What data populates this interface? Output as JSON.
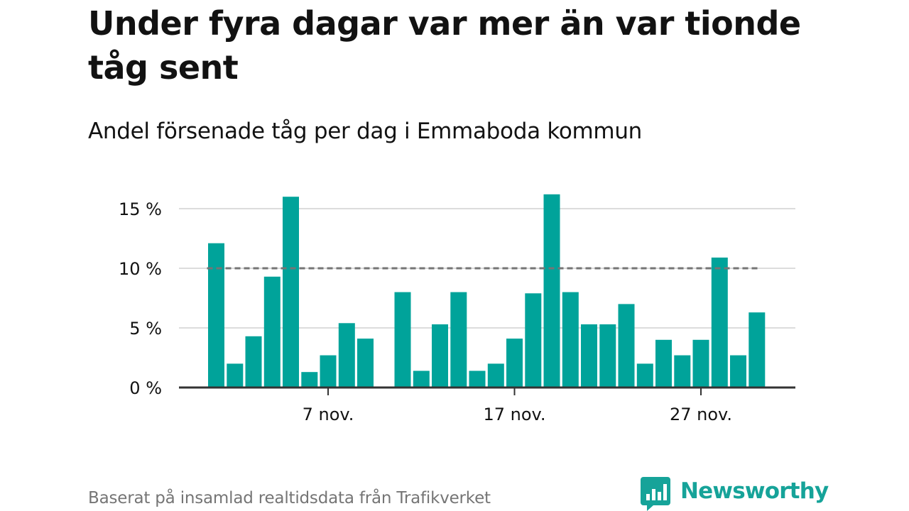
{
  "title": "Under fyra dagar var mer än var tionde tåg sent",
  "subtitle": "Andel försenade tåg per dag i Emmaboda kommun",
  "source": "Baserat på insamlad realtidsdata från Trafikverket",
  "brand": {
    "name": "Newsworthy",
    "logo_icon": "bar-chart-speech-bubble-icon"
  },
  "colors": {
    "bar": "#00a39a",
    "threshold": "#757575",
    "grid": "#dcdcdc",
    "axis": "#333333",
    "brand": "#16a399",
    "text": "#121212",
    "muted": "#757575"
  },
  "chart_data": {
    "type": "bar",
    "title": "Under fyra dagar var mer än var tionde tåg sent",
    "subtitle": "Andel försenade tåg per dag i Emmaboda kommun",
    "x_unit": "day of November",
    "x": [
      1,
      2,
      3,
      4,
      5,
      6,
      7,
      8,
      9,
      10,
      11,
      12,
      13,
      14,
      15,
      16,
      17,
      18,
      19,
      20,
      21,
      22,
      23,
      24,
      25,
      26,
      27,
      28,
      29,
      30
    ],
    "values": [
      12.1,
      2.0,
      4.3,
      9.3,
      16.0,
      1.3,
      2.7,
      5.4,
      4.1,
      null,
      8.0,
      1.4,
      5.3,
      8.0,
      1.4,
      2.0,
      4.1,
      7.9,
      16.2,
      8.0,
      5.3,
      5.3,
      7.0,
      2.0,
      4.0,
      2.7,
      4.0,
      10.9,
      2.7,
      6.3
    ],
    "x_ticks": [
      {
        "x": 7,
        "label": "7 nov."
      },
      {
        "x": 17,
        "label": "17 nov."
      },
      {
        "x": 27,
        "label": "27 nov."
      }
    ],
    "y_ticks": [
      {
        "value": 0,
        "label": "0 %"
      },
      {
        "value": 5,
        "label": "5 %"
      },
      {
        "value": 10,
        "label": "10 %"
      },
      {
        "value": 15,
        "label": "15 %"
      }
    ],
    "ylim": [
      0,
      16.5
    ],
    "reference_line": {
      "value": 10,
      "style": "dashed"
    },
    "grid": true,
    "legend": "none"
  }
}
